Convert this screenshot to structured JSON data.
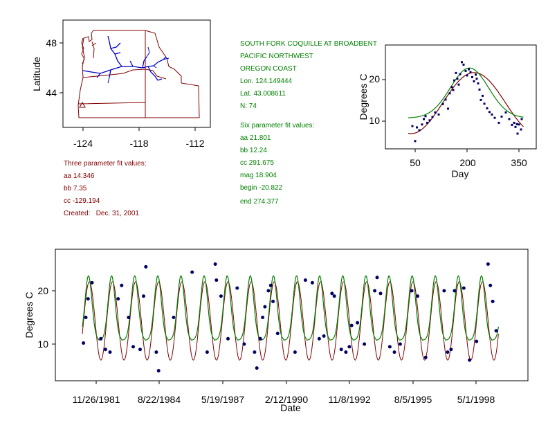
{
  "colors": {
    "dark_red": "#800000",
    "green": "#008000",
    "blue": "#0000cc",
    "point": "#000066"
  },
  "site_info": {
    "lines": [
      "SOUTH FORK COQUILLE AT BROADBENT",
      "PACIFIC NORTHWEST",
      "OREGON COAST",
      "Lon. 124.149444",
      "Lat. 43.008611",
      "N: 74"
    ]
  },
  "three_param": {
    "lines": [
      "Three parameter fit values:",
      "aa 14.346",
      "bb 7.35",
      "cc -129.194",
      "Created:   Dec. 31, 2001"
    ]
  },
  "six_param": {
    "lines": [
      "Six parameter fit values:",
      "aa 21.801",
      "bb 12.24",
      "cc 291.675",
      "mag 18.904",
      "begin -20.822",
      "end 274.377"
    ]
  },
  "chart_data": [
    {
      "type": "map",
      "ylabel": "Latitude",
      "xticks": [
        "-124",
        "-118",
        "-112"
      ],
      "yticks": [
        "48",
        "44"
      ]
    },
    {
      "type": "scatter",
      "xlabel": "Day",
      "ylabel": "Degrees C",
      "xticks": [
        50,
        200,
        350
      ],
      "yticks": [
        10,
        20
      ],
      "xlim": [
        0,
        380
      ],
      "ylim": [
        3,
        27
      ],
      "fit3": {
        "aa": 14.346,
        "bb": 7.35,
        "cc": -129.194
      },
      "fit6": {
        "aa": 21.801,
        "bb": 12.24,
        "cc": 291.675,
        "mag": 18.904,
        "begin": -20.822,
        "end": 274.377
      },
      "points": [
        [
          42,
          8.8
        ],
        [
          50,
          5.2
        ],
        [
          55,
          8.5
        ],
        [
          62,
          7.8
        ],
        [
          70,
          9.2
        ],
        [
          75,
          10.5
        ],
        [
          80,
          11.2
        ],
        [
          85,
          9.6
        ],
        [
          92,
          10.2
        ],
        [
          100,
          11.0
        ],
        [
          108,
          12.1
        ],
        [
          118,
          11.6
        ],
        [
          130,
          14.1
        ],
        [
          138,
          15.2
        ],
        [
          145,
          13.0
        ],
        [
          150,
          16.7
        ],
        [
          156,
          18.2
        ],
        [
          160,
          17.5
        ],
        [
          163,
          19.8
        ],
        [
          168,
          21.6
        ],
        [
          172,
          20.2
        ],
        [
          176,
          18.8
        ],
        [
          180,
          21.3
        ],
        [
          185,
          24.2
        ],
        [
          190,
          23.6
        ],
        [
          196,
          22.1
        ],
        [
          200,
          21.0
        ],
        [
          205,
          22.5
        ],
        [
          210,
          21.8
        ],
        [
          215,
          20.6
        ],
        [
          220,
          19.6
        ],
        [
          225,
          21.2
        ],
        [
          228,
          20.2
        ],
        [
          232,
          19.1
        ],
        [
          236,
          17.6
        ],
        [
          240,
          15.1
        ],
        [
          245,
          16.1
        ],
        [
          250,
          14.2
        ],
        [
          258,
          13.1
        ],
        [
          265,
          12.2
        ],
        [
          272,
          11.6
        ],
        [
          280,
          10.8
        ],
        [
          292,
          9.6
        ],
        [
          300,
          11.1
        ],
        [
          312,
          12.1
        ],
        [
          322,
          10.5
        ],
        [
          330,
          9.1
        ],
        [
          336,
          9.6
        ],
        [
          340,
          8.6
        ],
        [
          344,
          9.3
        ],
        [
          346,
          7.0
        ],
        [
          350,
          9.2
        ],
        [
          356,
          8.0
        ],
        [
          358,
          10.5
        ]
      ]
    },
    {
      "type": "line",
      "xlabel": "Date",
      "ylabel": "Degrees C",
      "xticks": [
        "11/26/1981",
        "8/22/1984",
        "5/19/1987",
        "2/12/1990",
        "11/8/1992",
        "8/5/1995",
        "5/1/1998"
      ],
      "yticks": [
        10,
        20
      ],
      "ylim": [
        3,
        27
      ],
      "year_start": 1981.3,
      "year_end": 1999.3,
      "points": [
        [
          1981.35,
          10.2
        ],
        [
          1981.45,
          15.0
        ],
        [
          1981.55,
          18.5
        ],
        [
          1981.72,
          21.5
        ],
        [
          1982.1,
          11.0
        ],
        [
          1982.3,
          9.0
        ],
        [
          1982.5,
          8.5
        ],
        [
          1982.85,
          18.5
        ],
        [
          1983.0,
          21.0
        ],
        [
          1983.3,
          15.0
        ],
        [
          1983.5,
          9.5
        ],
        [
          1983.8,
          9.0
        ],
        [
          1983.95,
          19.0
        ],
        [
          1984.05,
          24.5
        ],
        [
          1984.5,
          8.5
        ],
        [
          1984.6,
          5.0
        ],
        [
          1985.25,
          15.0
        ],
        [
          1986.05,
          23.5
        ],
        [
          1986.7,
          8.5
        ],
        [
          1987.05,
          25.0
        ],
        [
          1987.1,
          22.0
        ],
        [
          1987.3,
          19.0
        ],
        [
          1987.6,
          11.0
        ],
        [
          1988.0,
          20.5
        ],
        [
          1988.3,
          10.0
        ],
        [
          1988.75,
          8.5
        ],
        [
          1988.85,
          5.5
        ],
        [
          1989.0,
          11.0
        ],
        [
          1989.1,
          15.0
        ],
        [
          1989.2,
          17.0
        ],
        [
          1989.35,
          20.0
        ],
        [
          1989.45,
          21.0
        ],
        [
          1989.55,
          18.0
        ],
        [
          1989.75,
          12.0
        ],
        [
          1990.5,
          8.5
        ],
        [
          1990.95,
          22.0
        ],
        [
          1991.25,
          21.5
        ],
        [
          1991.55,
          11.0
        ],
        [
          1991.75,
          11.5
        ],
        [
          1992.1,
          19.5
        ],
        [
          1992.2,
          19.0
        ],
        [
          1992.5,
          9.0
        ],
        [
          1992.7,
          8.5
        ],
        [
          1992.85,
          9.5
        ],
        [
          1992.95,
          13.5
        ],
        [
          1993.2,
          14.0
        ],
        [
          1993.5,
          10.0
        ],
        [
          1993.95,
          20.0
        ],
        [
          1994.05,
          22.5
        ],
        [
          1994.2,
          19.5
        ],
        [
          1994.6,
          9.5
        ],
        [
          1994.8,
          8.5
        ],
        [
          1995.05,
          10.0
        ],
        [
          1995.55,
          20.0
        ],
        [
          1995.8,
          19.0
        ],
        [
          1996.15,
          7.5
        ],
        [
          1996.95,
          20.0
        ],
        [
          1997.1,
          8.5
        ],
        [
          1997.25,
          9.0
        ],
        [
          1997.4,
          20.0
        ],
        [
          1997.8,
          20.5
        ],
        [
          1998.05,
          7.0
        ],
        [
          1998.35,
          10.5
        ],
        [
          1998.85,
          25.0
        ],
        [
          1998.95,
          21.0
        ],
        [
          1999.05,
          18.0
        ],
        [
          1999.2,
          12.5
        ]
      ]
    }
  ]
}
